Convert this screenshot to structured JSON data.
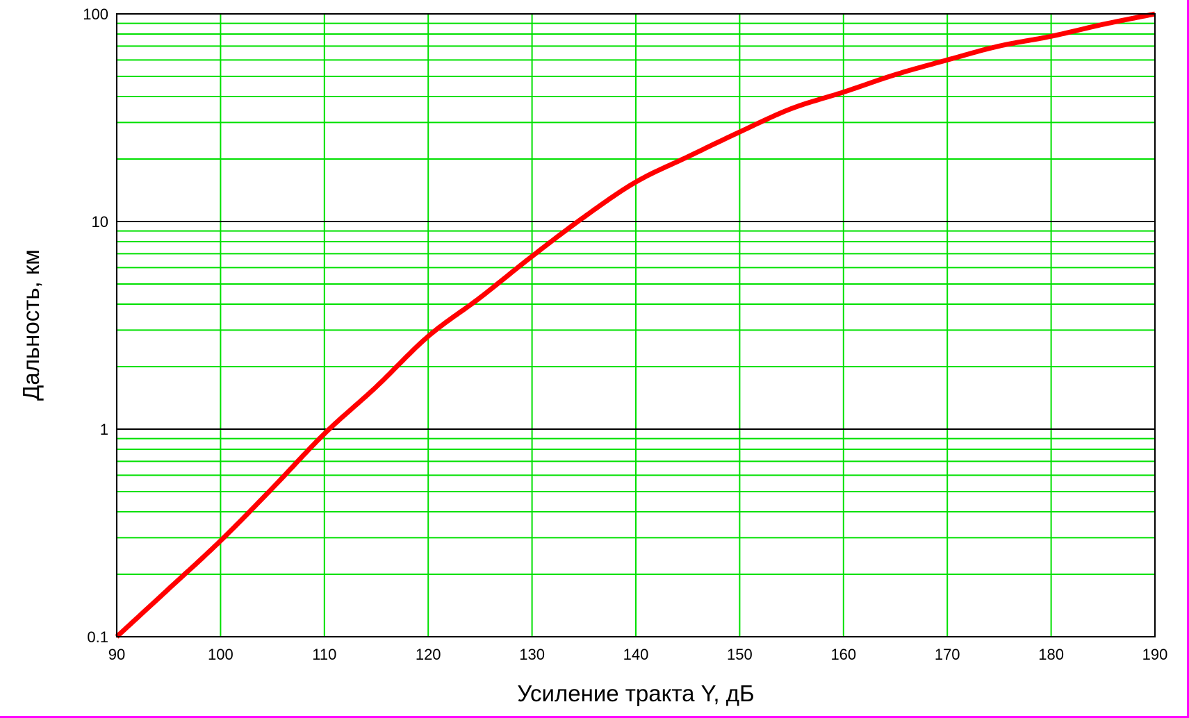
{
  "chart_data": {
    "type": "line",
    "title": "",
    "xlabel": "Усиление тракта Y, дБ",
    "ylabel": "Дальность, км",
    "xlim": [
      90,
      190
    ],
    "ylim": [
      0.1,
      100
    ],
    "yscale": "log",
    "grid": true,
    "x_ticks": [
      90,
      100,
      110,
      120,
      130,
      140,
      150,
      160,
      170,
      180,
      190
    ],
    "x_tick_labels": [
      "90",
      "100",
      "110",
      "120",
      "130",
      "140",
      "150",
      "160",
      "170",
      "180",
      "190"
    ],
    "y_ticks": [
      0.1,
      1,
      10,
      100
    ],
    "y_tick_labels": [
      "0.1",
      "1",
      "10",
      "100"
    ],
    "colors": {
      "curve": "#ff0000",
      "minor_grid": "#00e000",
      "major_grid": "#000000",
      "frame_border": "#ff00ff"
    },
    "series": [
      {
        "x": [
          90,
          95,
          100,
          105,
          110,
          115,
          120,
          125,
          130,
          135,
          140,
          145,
          150,
          155,
          160,
          165,
          170,
          175,
          180,
          185,
          190
        ],
        "y": [
          0.1,
          0.17,
          0.29,
          0.52,
          0.95,
          1.6,
          2.8,
          4.3,
          6.8,
          10.5,
          15.5,
          20.5,
          27,
          35,
          42,
          51,
          60,
          70,
          78,
          89,
          100
        ]
      }
    ]
  }
}
